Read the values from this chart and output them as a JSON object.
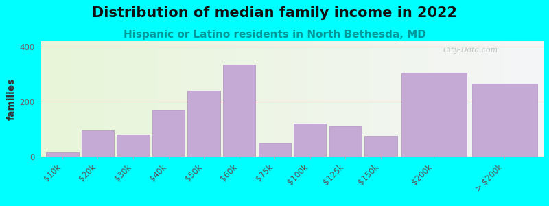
{
  "title": "Distribution of median family income in 2022",
  "subtitle": "Hispanic or Latino residents in North Bethesda, MD",
  "ylabel": "families",
  "background_color": "#00FFFF",
  "bar_color": "#c4aad4",
  "bar_edge_color": "#b090c0",
  "categories": [
    "$10k",
    "$20k",
    "$30k",
    "$40k",
    "$50k",
    "$60k",
    "$75k",
    "$100k",
    "$125k",
    "$150k",
    "$200k",
    "> $200k"
  ],
  "values": [
    15,
    95,
    80,
    170,
    240,
    335,
    50,
    120,
    110,
    75,
    305,
    265
  ],
  "bar_widths": [
    1,
    1,
    1,
    1,
    1,
    1,
    1,
    1,
    1,
    1,
    2,
    2
  ],
  "bar_lefts": [
    0,
    1,
    2,
    3,
    4,
    5,
    6,
    7,
    8,
    9,
    10,
    12
  ],
  "total_width": 14,
  "ylim": [
    0,
    420
  ],
  "yticks": [
    0,
    200,
    400
  ],
  "grid_color": "#f0a0a8",
  "title_fontsize": 15,
  "subtitle_fontsize": 11,
  "ylabel_fontsize": 10,
  "tick_fontsize": 8.5,
  "watermark": "City-Data.com"
}
